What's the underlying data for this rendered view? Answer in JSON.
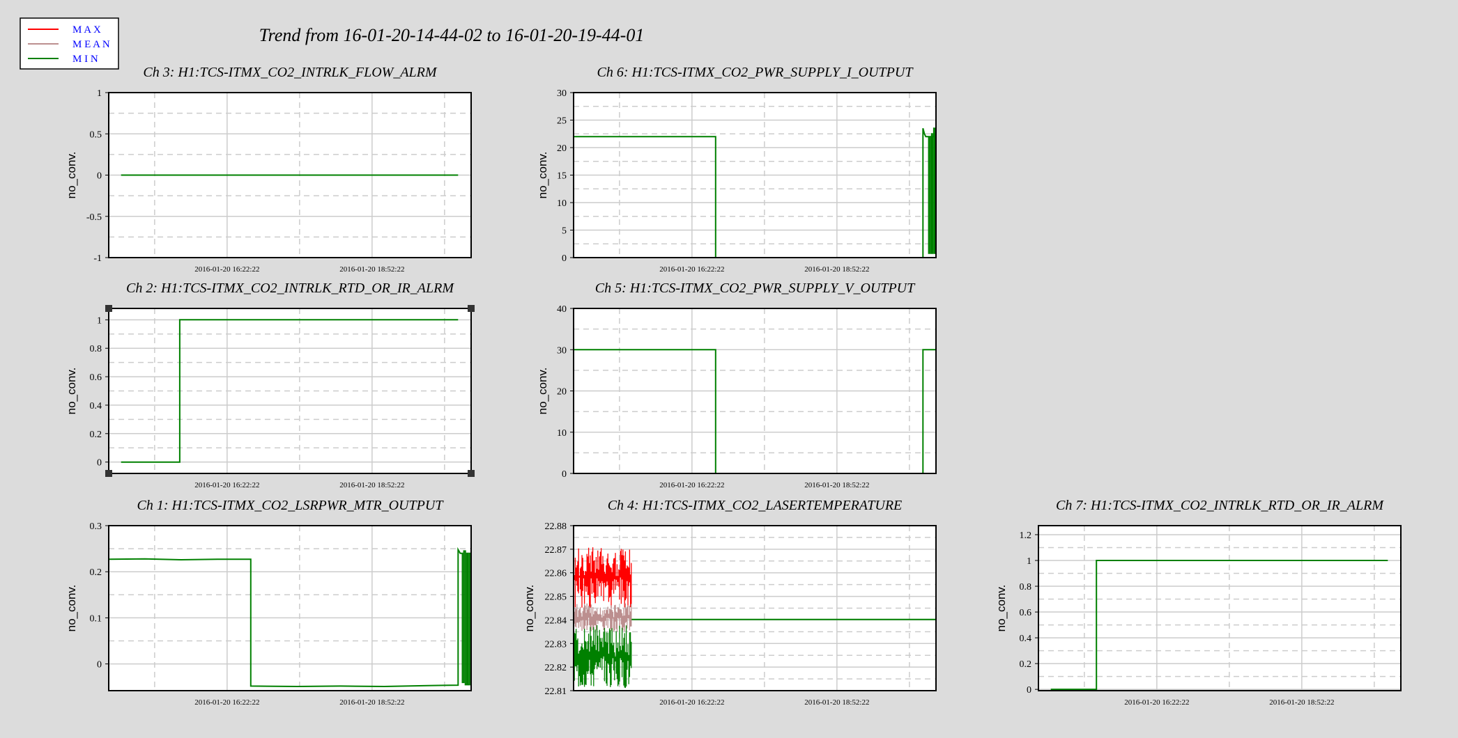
{
  "header": {
    "title": "Trend from 16-01-20-14-44-02 to 16-01-20-19-44-01"
  },
  "legend": {
    "placement": "top-left",
    "entries": [
      {
        "label": "M A X",
        "color": "#ff0000"
      },
      {
        "label": "M E A N",
        "color": "#bc8f8f"
      },
      {
        "label": "M I N",
        "color": "#008000"
      }
    ],
    "text_color": "#0000ff"
  },
  "colors": {
    "background": "#dcdcdc",
    "plot_bg": "#ffffff",
    "grid_solid": "#cccccc",
    "grid_dashed": "#cccccc",
    "max": "#ff0000",
    "mean": "#bc8f8f",
    "min": "#008000"
  },
  "chart_data": [
    {
      "id": "ch3",
      "type": "line",
      "title": "Ch 3: H1:TCS-ITMX_CO2_INTRLK_FLOW_ALRM",
      "ylabel": "no_conv.",
      "xlabel": "",
      "grid": true,
      "ylim": [
        -1,
        1
      ],
      "yticks": [
        -1,
        -0.5,
        0,
        0.5,
        1
      ],
      "yticklabels": [
        "-1",
        "-0.5",
        "0",
        "0.5",
        "1"
      ],
      "xlim": [
        0,
        5
      ],
      "xticks": [
        1.6333,
        3.6333
      ],
      "xticklabels": [
        "2016-01-20 16:22:22",
        "2016-01-20 18:52:22"
      ],
      "series": [
        {
          "name": "MIN",
          "color": "#008000",
          "x": [
            0.17,
            4.82
          ],
          "y": [
            0,
            0
          ]
        }
      ]
    },
    {
      "id": "ch6",
      "type": "line",
      "title": "Ch 6: H1:TCS-ITMX_CO2_PWR_SUPPLY_I_OUTPUT",
      "ylabel": "no_conv.",
      "xlabel": "",
      "grid": true,
      "ylim": [
        0,
        30
      ],
      "yticks": [
        0,
        5,
        10,
        15,
        20,
        25,
        30
      ],
      "yticklabels": [
        "0",
        "5",
        "10",
        "15",
        "20",
        "25",
        "30"
      ],
      "xlim": [
        0,
        5
      ],
      "xticks": [
        1.6333,
        3.6333
      ],
      "xticklabels": [
        "2016-01-20 16:22:22",
        "2016-01-20 18:52:22"
      ],
      "series": [
        {
          "name": "MIN",
          "color": "#008000",
          "x": [
            0,
            1.96,
            1.96,
            4.82,
            4.82,
            4.84,
            4.86,
            4.9,
            4.9,
            4.91,
            4.91,
            4.93,
            4.93,
            4.94,
            4.94,
            4.95,
            4.95,
            4.96,
            4.96,
            4.97,
            4.97,
            4.98,
            4.98,
            4.99,
            4.99,
            5.0
          ],
          "y": [
            22,
            22,
            0,
            0,
            23.5,
            22.5,
            22,
            22,
            0.8,
            0.8,
            22,
            22,
            0.8,
            0.8,
            22.5,
            22.5,
            0.8,
            0.8,
            22,
            22,
            23.5,
            23.5,
            0.8,
            0.8,
            22.5,
            22.5
          ]
        }
      ]
    },
    {
      "id": "ch2",
      "type": "line",
      "title": "Ch 2: H1:TCS-ITMX_CO2_INTRLK_RTD_OR_IR_ALRM",
      "ylabel": "no_conv.",
      "xlabel": "",
      "grid": true,
      "ylim": [
        -0.08,
        1.08
      ],
      "yticks": [
        0,
        0.2,
        0.4,
        0.6,
        0.8,
        1
      ],
      "yticklabels": [
        "0",
        "0.2",
        "0.4",
        "0.6",
        "0.8",
        "1"
      ],
      "xlim": [
        0,
        5
      ],
      "xticks": [
        1.6333,
        3.6333
      ],
      "xticklabels": [
        "2016-01-20 16:22:22",
        "2016-01-20 18:52:22"
      ],
      "series": [
        {
          "name": "MIN",
          "color": "#008000",
          "x": [
            0.17,
            0.98,
            0.98,
            4.82
          ],
          "y": [
            0,
            0,
            1,
            1
          ]
        }
      ]
    },
    {
      "id": "ch5",
      "type": "line",
      "title": "Ch 5: H1:TCS-ITMX_CO2_PWR_SUPPLY_V_OUTPUT",
      "ylabel": "no_conv.",
      "xlabel": "",
      "grid": true,
      "ylim": [
        0,
        40
      ],
      "yticks": [
        0,
        10,
        20,
        30,
        40
      ],
      "yticklabels": [
        "0",
        "10",
        "20",
        "30",
        "40"
      ],
      "xlim": [
        0,
        5
      ],
      "xticks": [
        1.6333,
        3.6333
      ],
      "xticklabels": [
        "2016-01-20 16:22:22",
        "2016-01-20 18:52:22"
      ],
      "series": [
        {
          "name": "MIN",
          "color": "#008000",
          "x": [
            0,
            1.96,
            1.96,
            4.82,
            4.82,
            5.0
          ],
          "y": [
            30,
            30,
            0,
            0,
            30,
            30
          ]
        }
      ]
    },
    {
      "id": "ch1",
      "type": "line",
      "title": "Ch 1: H1:TCS-ITMX_CO2_LSRPWR_MTR_OUTPUT",
      "ylabel": "no_conv.",
      "xlabel": "",
      "grid": true,
      "ylim": [
        -0.058,
        0.3
      ],
      "yticks": [
        0,
        0.1,
        0.2,
        0.3
      ],
      "yticklabels": [
        "0",
        "0.1",
        "0.2",
        "0.3"
      ],
      "xlim": [
        0,
        5
      ],
      "xticks": [
        1.6333,
        3.6333
      ],
      "xticklabels": [
        "2016-01-20 16:22:22",
        "2016-01-20 18:52:22"
      ],
      "series": [
        {
          "name": "MIN",
          "color": "#008000",
          "x": [
            0,
            0.5,
            1.0,
            1.5,
            1.96,
            1.96,
            2.6,
            3.2,
            3.8,
            4.4,
            4.82,
            4.82,
            4.85,
            4.88,
            4.88,
            4.9,
            4.9,
            4.92,
            4.92,
            4.94,
            4.94,
            4.96,
            4.96,
            4.98,
            4.98,
            5.0
          ],
          "y": [
            0.227,
            0.228,
            0.226,
            0.227,
            0.227,
            -0.048,
            -0.049,
            -0.048,
            -0.049,
            -0.047,
            -0.046,
            0.248,
            0.24,
            0.24,
            -0.04,
            -0.04,
            0.245,
            0.245,
            -0.045,
            -0.045,
            0.24,
            0.24,
            -0.045,
            -0.045,
            0.24,
            0.24
          ]
        }
      ]
    },
    {
      "id": "ch4",
      "type": "line",
      "title": "Ch 4: H1:TCS-ITMX_CO2_LASERTEMPERATURE",
      "ylabel": "no_conv.",
      "xlabel": "",
      "grid": true,
      "ylim": [
        22.81,
        22.88
      ],
      "yticks": [
        22.81,
        22.82,
        22.83,
        22.84,
        22.85,
        22.86,
        22.87,
        22.88
      ],
      "yticklabels": [
        "22.81",
        "22.82",
        "22.83",
        "22.84",
        "22.85",
        "22.86",
        "22.87",
        "22.88"
      ],
      "xlim": [
        0,
        5
      ],
      "xticks": [
        1.6333,
        3.6333
      ],
      "xticklabels": [
        "2016-01-20 16:22:22",
        "2016-01-20 18:52:22"
      ],
      "series": [
        {
          "name": "MAX",
          "color": "#ff0000",
          "x": [
            0,
            0.8
          ],
          "y_band": [
            22.845,
            22.871
          ]
        },
        {
          "name": "MEAN",
          "color": "#bc8f8f",
          "x": [
            0,
            0.8
          ],
          "y_band": [
            22.835,
            22.847
          ]
        },
        {
          "name": "MIN",
          "color": "#008000",
          "x": [
            0,
            0.8
          ],
          "y_band": [
            22.811,
            22.838
          ]
        },
        {
          "name": "MIN",
          "color": "#008000",
          "x": [
            0.8,
            5.0
          ],
          "y": [
            22.8402,
            22.8402
          ]
        }
      ]
    },
    {
      "id": "ch7",
      "type": "line",
      "title": "Ch 7: H1:TCS-ITMX_CO2_INTRLK_RTD_OR_IR_ALRM",
      "ylabel": "no_conv.",
      "xlabel": "",
      "grid": true,
      "ylim": [
        -0.01,
        1.27
      ],
      "yticks": [
        0,
        0.2,
        0.4,
        0.6,
        0.8,
        1,
        1.2
      ],
      "yticklabels": [
        "0",
        "0.2",
        "0.4",
        "0.6",
        "0.8",
        "1",
        "1.2"
      ],
      "xlim": [
        0,
        5
      ],
      "xticks": [
        1.6333,
        3.6333
      ],
      "xticklabels": [
        "2016-01-20 16:22:22",
        "2016-01-20 18:52:22"
      ],
      "series": [
        {
          "name": "MIN",
          "color": "#008000",
          "x": [
            0.17,
            0.8,
            0.8,
            4.82
          ],
          "y": [
            0,
            0,
            1,
            1
          ]
        }
      ]
    }
  ]
}
